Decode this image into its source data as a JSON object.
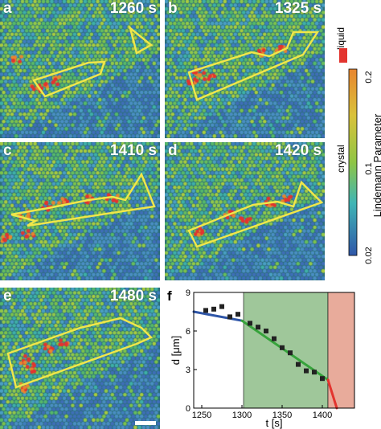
{
  "panels": [
    {
      "id": "a",
      "label": "a",
      "time": "1260 s"
    },
    {
      "id": "b",
      "label": "b",
      "time": "1325 s"
    },
    {
      "id": "c",
      "label": "c",
      "time": "1410 s"
    },
    {
      "id": "d",
      "label": "d",
      "time": "1420 s"
    },
    {
      "id": "e",
      "label": "e",
      "time": "1480 s"
    }
  ],
  "colorbar": {
    "title": "Lindemann Parameter",
    "liquid_label": "liquid",
    "crystal_label": "crystal",
    "ticks": [
      "0.2",
      "0.1",
      "0.02"
    ],
    "colors": {
      "liquid": "#e3342f",
      "high": "#e8852f",
      "mid": "#9fc842",
      "low": "#2f56a8"
    }
  },
  "chart_panel_label": "f",
  "chart_data": {
    "type": "scatter",
    "xlabel": "t [s]",
    "ylabel": "d [μm]",
    "xlim": [
      1240,
      1440
    ],
    "ylim": [
      0,
      9
    ],
    "xticks": [
      1250,
      1300,
      1350,
      1400
    ],
    "yticks": [
      0,
      3,
      6,
      9
    ],
    "points": [
      {
        "x": 1255,
        "y": 7.6
      },
      {
        "x": 1265,
        "y": 7.7
      },
      {
        "x": 1275,
        "y": 7.9
      },
      {
        "x": 1285,
        "y": 7.1
      },
      {
        "x": 1295,
        "y": 7.3
      },
      {
        "x": 1310,
        "y": 6.6
      },
      {
        "x": 1320,
        "y": 6.3
      },
      {
        "x": 1330,
        "y": 6.0
      },
      {
        "x": 1340,
        "y": 5.4
      },
      {
        "x": 1350,
        "y": 4.7
      },
      {
        "x": 1360,
        "y": 4.3
      },
      {
        "x": 1370,
        "y": 3.4
      },
      {
        "x": 1380,
        "y": 2.9
      },
      {
        "x": 1390,
        "y": 2.8
      },
      {
        "x": 1400,
        "y": 2.3
      }
    ],
    "fit_lines": [
      {
        "color": "#2f56a8",
        "x": [
          1240,
          1300
        ],
        "y": [
          7.5,
          6.8
        ]
      },
      {
        "color": "#36a33b",
        "x": [
          1300,
          1407
        ],
        "y": [
          6.8,
          2.2
        ]
      },
      {
        "color": "#e3342f",
        "x": [
          1407,
          1418
        ],
        "y": [
          2.2,
          0.0
        ]
      }
    ],
    "shaded_regions": [
      {
        "color": "#9fc79a",
        "from": 1302,
        "to": 1407
      },
      {
        "color": "#e8ab9b",
        "from": 1407,
        "to": 1440
      }
    ]
  }
}
